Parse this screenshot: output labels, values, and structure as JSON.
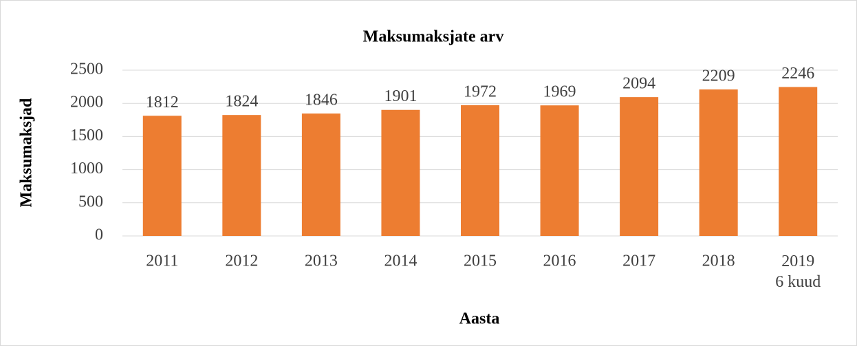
{
  "chart_data": {
    "type": "bar",
    "title": "Maksumaksjate arv",
    "x_label": "Aasta",
    "y_label": "Maksumaksjad",
    "categories": [
      "2011",
      "2012",
      "2013",
      "2014",
      "2015",
      "2016",
      "2017",
      "2018",
      "2019\n6 kuud"
    ],
    "values": [
      1812,
      1824,
      1846,
      1901,
      1972,
      1969,
      2094,
      2209,
      2246
    ],
    "color": "#ed7d31",
    "ylim": [
      0,
      2500
    ],
    "yticks": [
      0,
      500,
      1000,
      1500,
      2000,
      2500
    ],
    "grid": true
  }
}
